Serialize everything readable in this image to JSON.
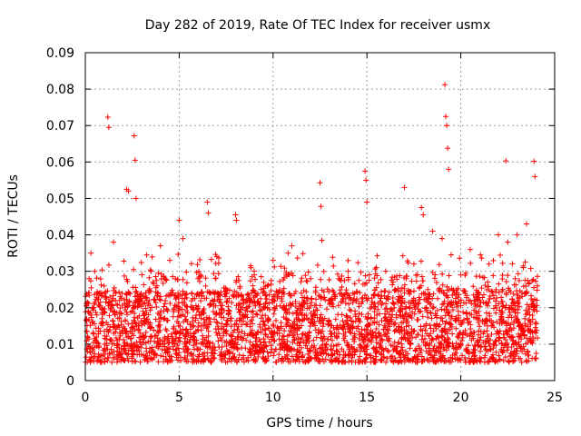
{
  "chart_data": {
    "type": "scatter",
    "title": "Day 282 of 2019, Rate Of TEC Index for receiver usmx",
    "xlabel": "GPS time / hours",
    "ylabel": "ROTI / TECUs",
    "xlim": [
      0,
      25
    ],
    "ylim": [
      0,
      0.09
    ],
    "grid": true,
    "marker": "plus",
    "color": "#ff0000",
    "x_ticks": [
      0,
      5,
      10,
      15,
      20,
      25
    ],
    "x_tick_labels": [
      "0",
      "5",
      "10",
      "15",
      "20",
      "25"
    ],
    "y_ticks": [
      0,
      0.01,
      0.02,
      0.03,
      0.04,
      0.05,
      0.06,
      0.07,
      0.08,
      0.09
    ],
    "y_tick_labels": [
      "0",
      "0.01",
      "0.02",
      "0.03",
      "0.04",
      "0.05",
      "0.06",
      "0.07",
      "0.08",
      "0.09"
    ],
    "series": [
      {
        "name": "ROTI",
        "x": [
          1.2,
          1.25,
          2.6,
          2.65,
          2.2,
          2.3,
          2.7,
          12.5,
          12.55,
          12.6,
          14.9,
          14.95,
          15.0,
          19.15,
          19.2,
          19.25,
          19.3,
          19.35,
          22.4,
          23.9,
          23.95,
          6.5,
          6.55,
          8.0,
          8.05,
          5.0,
          5.2,
          17.0,
          17.9,
          18.0,
          11.0,
          10.8,
          0.2,
          0.3,
          0.5,
          1.0,
          1.5,
          3.5,
          4.0,
          4.5,
          6.0,
          7.0,
          7.5,
          9.0,
          9.5,
          10.0,
          11.5,
          12.0,
          13.0,
          13.5,
          14.0,
          15.5,
          16.0,
          16.5,
          17.5,
          18.5,
          19.0,
          20.0,
          20.5,
          21.0,
          21.5,
          22.0,
          22.5,
          23.0,
          23.5
        ],
        "y": [
          0.0723,
          0.0695,
          0.0672,
          0.0605,
          0.0525,
          0.052,
          0.05,
          0.0543,
          0.0478,
          0.0385,
          0.0575,
          0.055,
          0.049,
          0.0812,
          0.0725,
          0.07,
          0.0638,
          0.058,
          0.0603,
          0.0602,
          0.056,
          0.049,
          0.046,
          0.0455,
          0.044,
          0.044,
          0.039,
          0.053,
          0.0475,
          0.0455,
          0.037,
          0.035,
          0.028,
          0.035,
          0.03,
          0.026,
          0.038,
          0.03,
          0.037,
          0.033,
          0.028,
          0.034,
          0.025,
          0.029,
          0.027,
          0.033,
          0.024,
          0.028,
          0.022,
          0.028,
          0.03,
          0.031,
          0.03,
          0.025,
          0.032,
          0.041,
          0.039,
          0.029,
          0.036,
          0.022,
          0.032,
          0.04,
          0.038,
          0.04,
          0.043
        ]
      }
    ]
  }
}
